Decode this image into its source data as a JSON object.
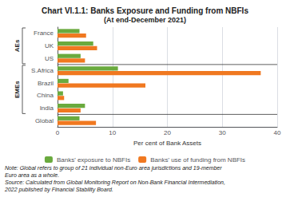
{
  "chart_data": {
    "type": "bar",
    "orientation": "horizontal",
    "title": "Chart VI.1.1: Banks Exposure and Funding from NBFIs",
    "subtitle": "(At end-December 2021)",
    "categories": [
      "France",
      "UK",
      "US",
      "S.Africa",
      "Brazil",
      "China",
      "India",
      "Global"
    ],
    "series": [
      {
        "name": "Banks' exposure to NBFIs",
        "color": "#6aaa3e",
        "values": [
          4.0,
          6.5,
          4.2,
          11.0,
          2.0,
          1.0,
          5.0,
          4.0
        ]
      },
      {
        "name": "Banks' use of funding from NBFIs",
        "color": "#f07820",
        "values": [
          5.2,
          7.2,
          5.0,
          37.0,
          16.0,
          1.2,
          4.2,
          7.0
        ]
      }
    ],
    "xlabel": "Per cent of Bank Assets",
    "xlim": [
      0,
      40
    ],
    "xticks": [
      0,
      10,
      20,
      30,
      40
    ],
    "grid": true,
    "legend": "bottom",
    "annotations": [
      {
        "text": "AEs",
        "categories": [
          "France",
          "UK",
          "US"
        ]
      },
      {
        "text": "EMEs",
        "categories": [
          "S.Africa",
          "Brazil",
          "China",
          "India"
        ]
      },
      {
        "text": "Note: Global refers to group of 21 individual non-Euro area jurisdictions and 19-member\nEuro area as a whole.\nSource: Calculated from Global Monitoring Report on Non-Bank Financial Intermediation,\n2022 published by Financial Stability Board."
      }
    ]
  }
}
